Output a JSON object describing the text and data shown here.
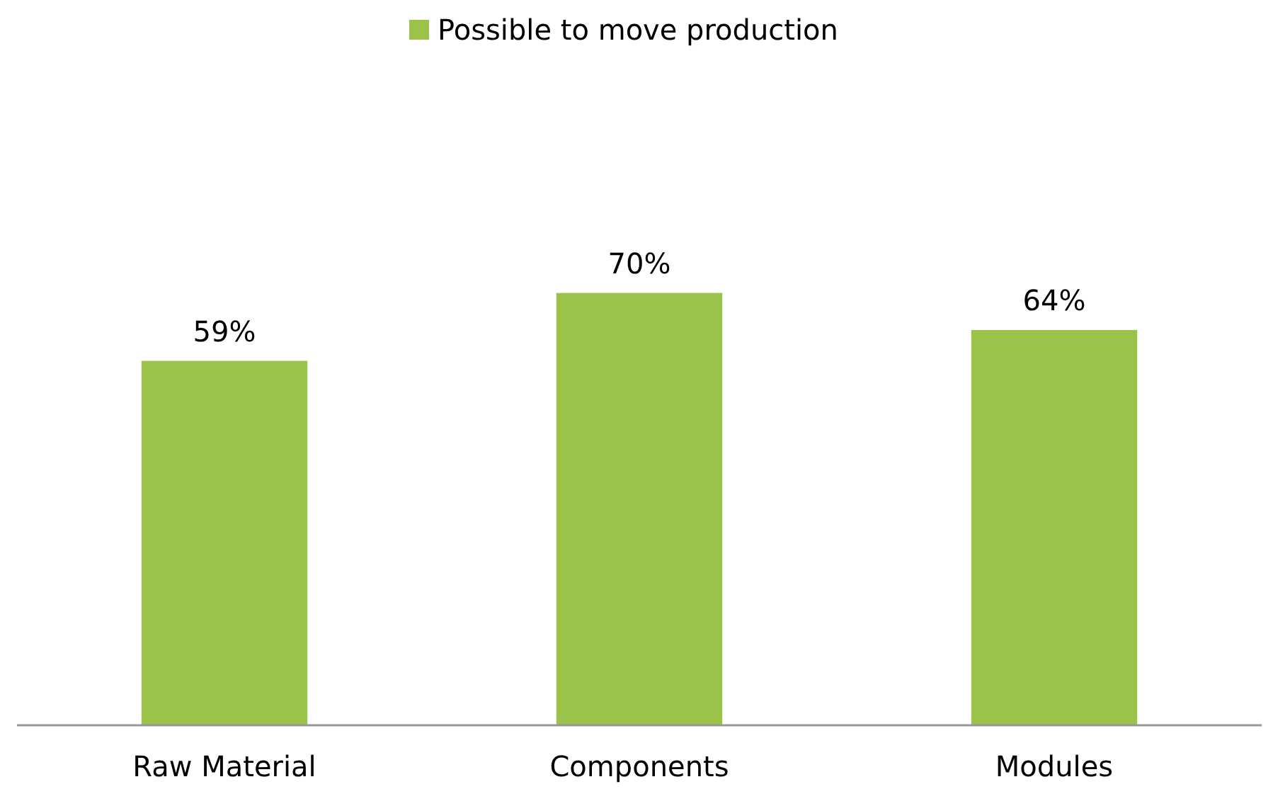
{
  "chart_data": {
    "type": "bar",
    "categories": [
      "Raw Material",
      "Components",
      "Modules"
    ],
    "series": [
      {
        "name": "Possible to move production",
        "color": "#9bc34a",
        "values": [
          59,
          70,
          64
        ],
        "value_labels": [
          "59%",
          "70%",
          "64%"
        ]
      }
    ],
    "legend": "top"
  }
}
